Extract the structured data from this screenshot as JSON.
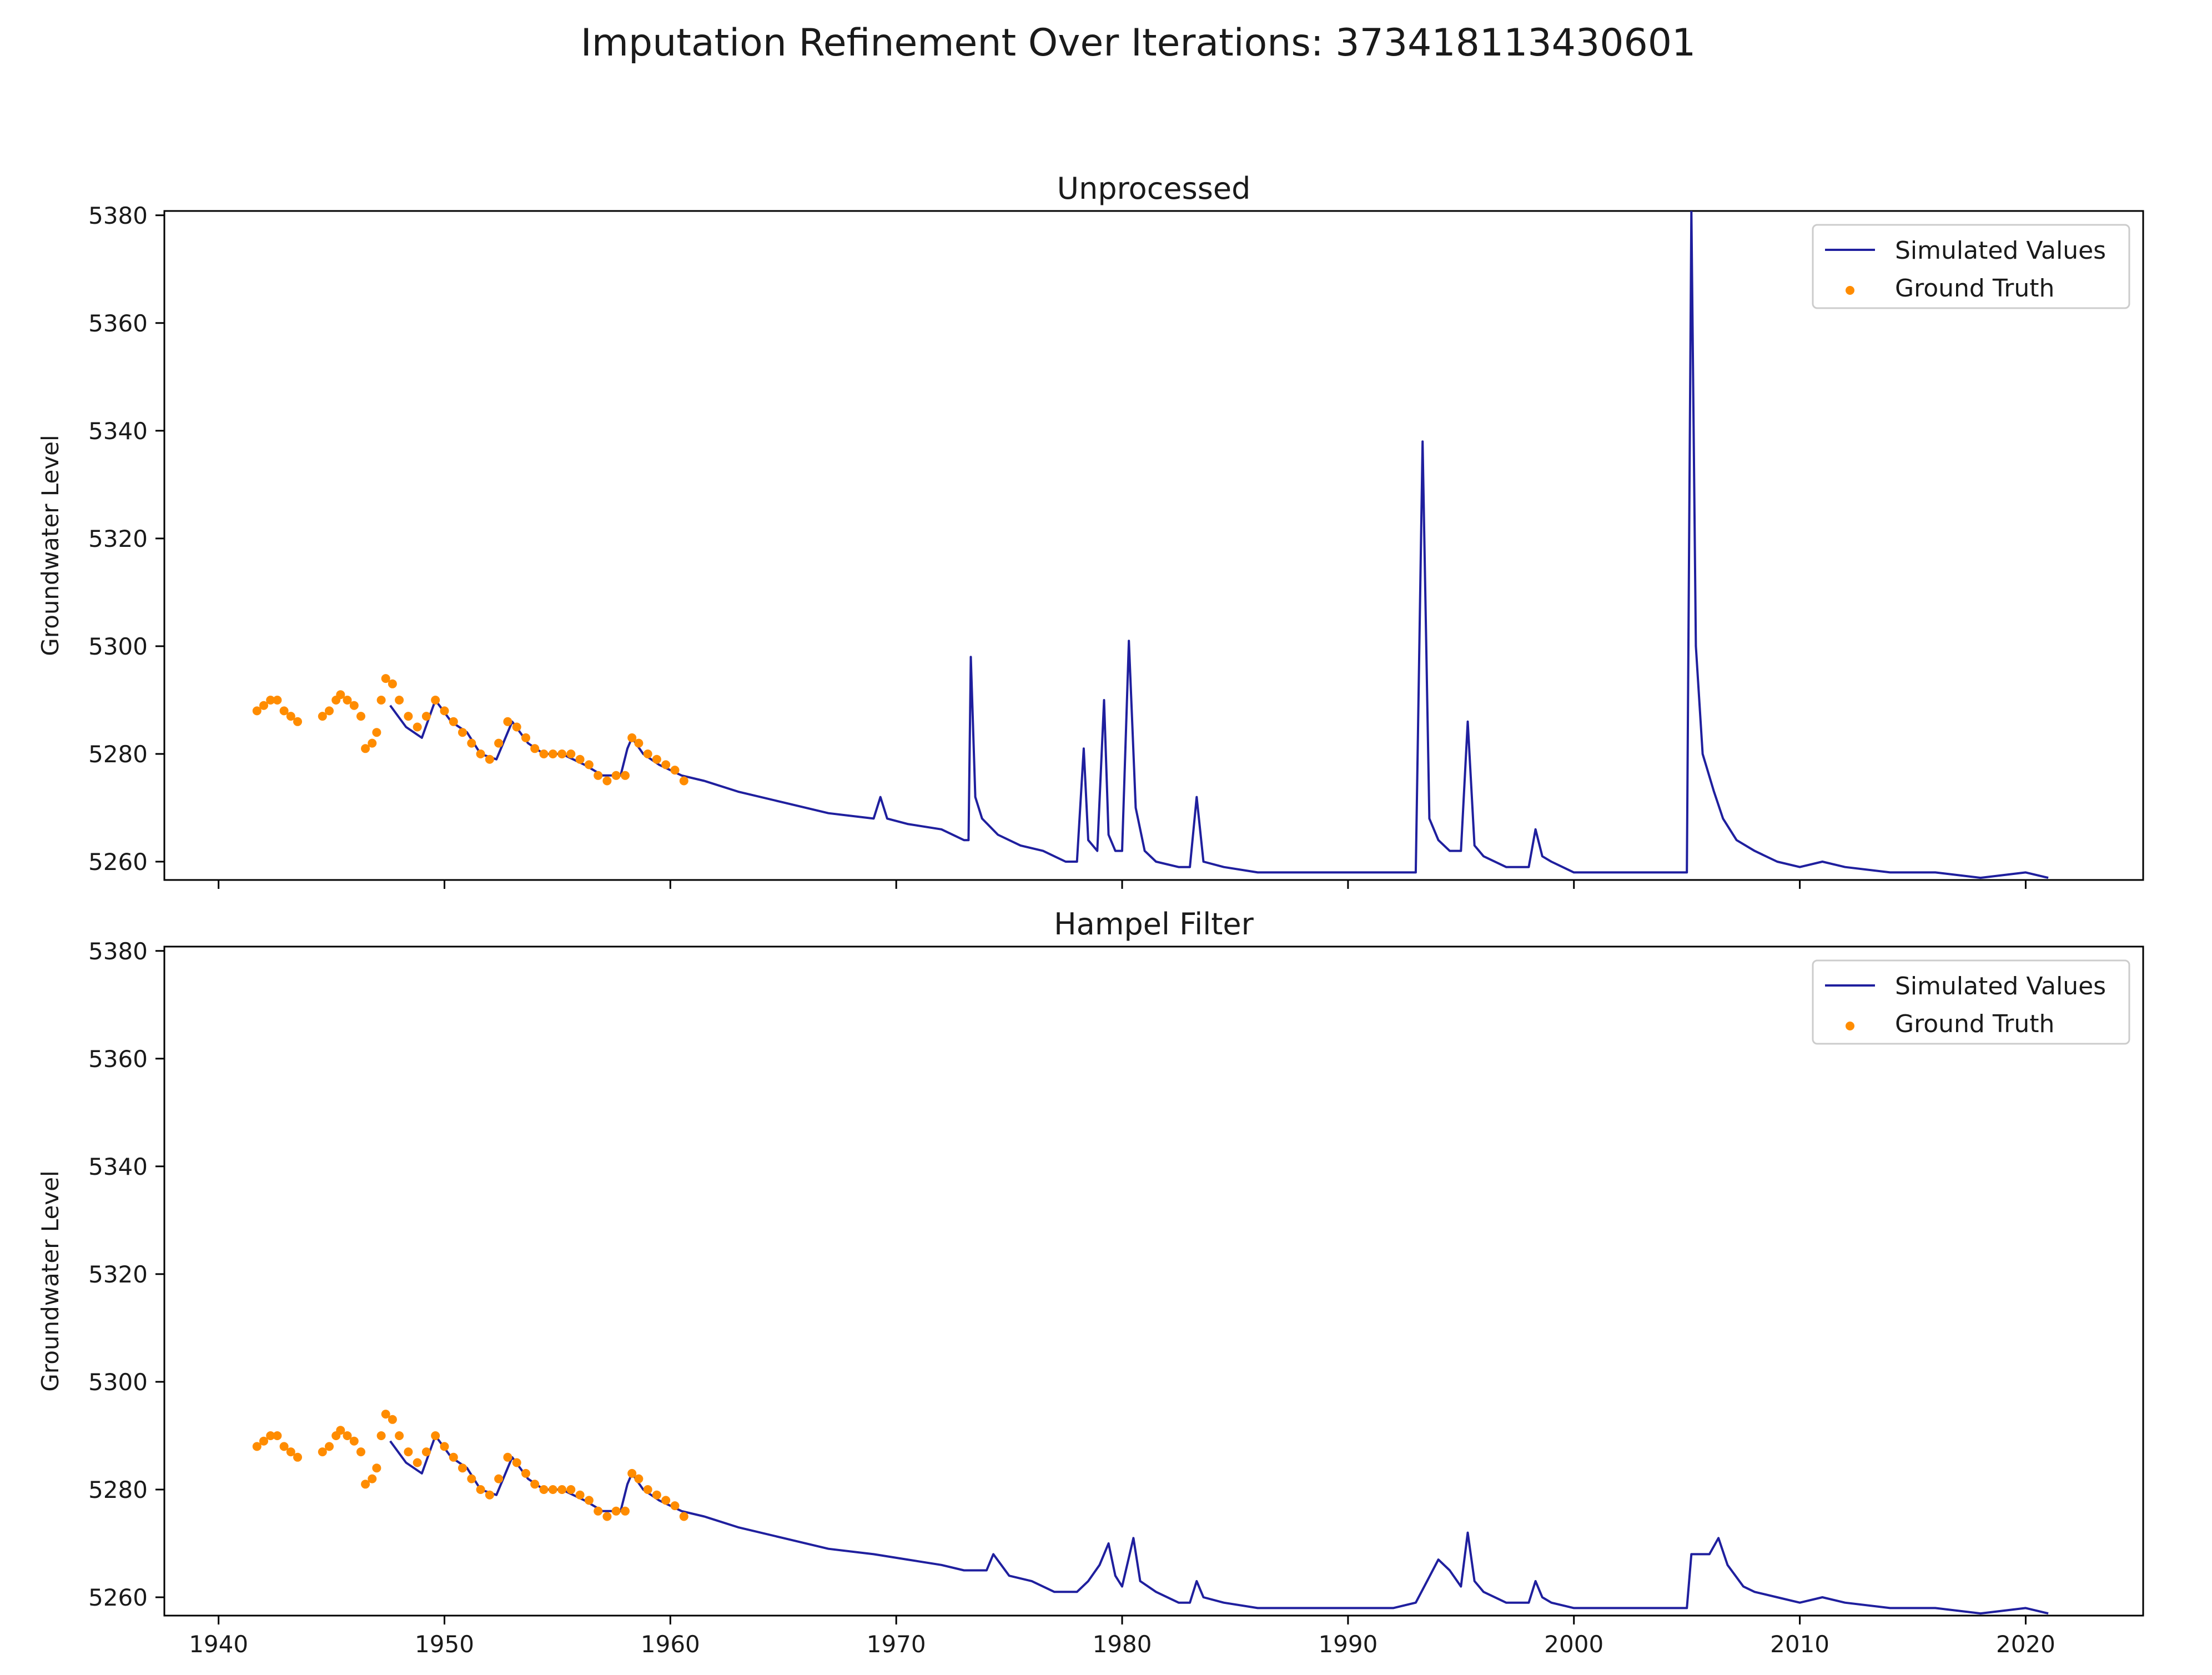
{
  "figure": {
    "suptitle": "Imputation Refinement Over Iterations: 373418113430601"
  },
  "style": {
    "line_color": "#1f1f9e",
    "truth_color": "#ff8c00",
    "axis_color": "#000000"
  },
  "chart_data": [
    {
      "type": "line",
      "title": "Unprocessed",
      "xlabel": "",
      "ylabel": "Groundwater Level",
      "xlim": [
        1937.6,
        2025.2
      ],
      "ylim": [
        5256.6,
        5380.8
      ],
      "xticks": [
        1940,
        1950,
        1960,
        1970,
        1980,
        1990,
        2000,
        2010,
        2020
      ],
      "xticklabels": [],
      "yticks": [
        5260,
        5280,
        5300,
        5320,
        5340,
        5360,
        5380
      ],
      "yticklabels": [
        "5260",
        "5280",
        "5300",
        "5320",
        "5340",
        "5360",
        "5380"
      ],
      "grid": false,
      "legend": {
        "position": "upper-right",
        "entries": [
          "Simulated Values",
          "Ground Truth"
        ]
      },
      "series": [
        {
          "name": "Simulated Values",
          "kind": "line",
          "x": [
            1947.6,
            1948.3,
            1949.0,
            1949.6,
            1950.3,
            1951.0,
            1951.6,
            1952.3,
            1953.0,
            1953.7,
            1954.4,
            1955.2,
            1956.2,
            1957.0,
            1957.8,
            1958.1,
            1958.3,
            1958.8,
            1959.5,
            1960.0,
            1960.5,
            1961.5,
            1963.0,
            1965.0,
            1967.0,
            1969.0,
            1969.3,
            1969.6,
            1970.5,
            1972.0,
            1973.0,
            1973.2,
            1973.3,
            1973.5,
            1973.8,
            1974.5,
            1975.5,
            1976.5,
            1977.5,
            1978.0,
            1978.3,
            1978.5,
            1978.9,
            1979.2,
            1979.4,
            1979.7,
            1980.0,
            1980.3,
            1980.6,
            1981.0,
            1981.5,
            1982.5,
            1983.0,
            1983.3,
            1983.6,
            1984.5,
            1986.0,
            1988.0,
            1990.0,
            1992.0,
            1993.0,
            1993.3,
            1993.6,
            1994.0,
            1994.5,
            1995.0,
            1995.3,
            1995.6,
            1996.0,
            1997.0,
            1998.0,
            1998.3,
            1998.6,
            1999.0,
            2000.0,
            2002.0,
            2004.0,
            2005.0,
            2005.2,
            2005.4,
            2005.7,
            2006.2,
            2006.6,
            2007.2,
            2008.0,
            2009.0,
            2010.0,
            2011.0,
            2012.0,
            2014.0,
            2016.0,
            2018.0,
            2020.0,
            2021.0
          ],
          "y": [
            5289,
            5285,
            5283,
            5290,
            5286,
            5284,
            5280,
            5279,
            5286,
            5282,
            5280,
            5280,
            5278,
            5276,
            5276,
            5281,
            5283,
            5280,
            5278,
            5277,
            5276,
            5275,
            5273,
            5271,
            5269,
            5268,
            5272,
            5268,
            5267,
            5266,
            5264,
            5264,
            5298,
            5272,
            5268,
            5265,
            5263,
            5262,
            5260,
            5260,
            5281,
            5264,
            5262,
            5290,
            5265,
            5262,
            5262,
            5301,
            5270,
            5262,
            5260,
            5259,
            5259,
            5272,
            5260,
            5259,
            5258,
            5258,
            5258,
            5258,
            5258,
            5338,
            5268,
            5264,
            5262,
            5262,
            5286,
            5263,
            5261,
            5259,
            5259,
            5266,
            5261,
            5260,
            5258,
            5258,
            5258,
            5258,
            5381,
            5300,
            5280,
            5273,
            5268,
            5264,
            5262,
            5260,
            5259,
            5260,
            5259,
            5258,
            5258,
            5257,
            5258,
            5257
          ]
        },
        {
          "name": "Ground Truth",
          "kind": "scatter",
          "x": [
            1941.7,
            1942.0,
            1942.3,
            1942.6,
            1942.9,
            1943.2,
            1943.5,
            1944.6,
            1944.9,
            1945.2,
            1945.4,
            1945.7,
            1946.0,
            1946.3,
            1946.5,
            1946.8,
            1947.0,
            1947.2,
            1947.4,
            1947.7,
            1948.0,
            1948.4,
            1948.8,
            1949.2,
            1949.6,
            1950.0,
            1950.4,
            1950.8,
            1951.2,
            1951.6,
            1952.0,
            1952.4,
            1952.8,
            1953.2,
            1953.6,
            1954.0,
            1954.4,
            1954.8,
            1955.2,
            1955.6,
            1956.0,
            1956.4,
            1956.8,
            1957.2,
            1957.6,
            1958.0,
            1958.3,
            1958.6,
            1959.0,
            1959.4,
            1959.8,
            1960.2,
            1960.6
          ],
          "y": [
            5288,
            5289,
            5290,
            5290,
            5288,
            5287,
            5286,
            5287,
            5288,
            5290,
            5291,
            5290,
            5289,
            5287,
            5281,
            5282,
            5284,
            5290,
            5294,
            5293,
            5290,
            5287,
            5285,
            5287,
            5290,
            5288,
            5286,
            5284,
            5282,
            5280,
            5279,
            5282,
            5286,
            5285,
            5283,
            5281,
            5280,
            5280,
            5280,
            5280,
            5279,
            5278,
            5276,
            5275,
            5276,
            5276,
            5283,
            5282,
            5280,
            5279,
            5278,
            5277,
            5275
          ]
        }
      ]
    },
    {
      "type": "line",
      "title": "Hampel Filter",
      "xlabel": "",
      "ylabel": "Groundwater Level",
      "xlim": [
        1937.6,
        2025.2
      ],
      "ylim": [
        5256.6,
        5380.8
      ],
      "xticks": [
        1940,
        1950,
        1960,
        1970,
        1980,
        1990,
        2000,
        2010,
        2020
      ],
      "xticklabels": [
        "1940",
        "1950",
        "1960",
        "1970",
        "1980",
        "1990",
        "2000",
        "2010",
        "2020"
      ],
      "yticks": [
        5260,
        5280,
        5300,
        5320,
        5340,
        5360,
        5380
      ],
      "yticklabels": [
        "5260",
        "5280",
        "5300",
        "5320",
        "5340",
        "5360",
        "5380"
      ],
      "grid": false,
      "legend": {
        "position": "upper-right",
        "entries": [
          "Simulated Values",
          "Ground Truth"
        ]
      },
      "series": [
        {
          "name": "Simulated Values",
          "kind": "line",
          "x": [
            1947.6,
            1948.3,
            1949.0,
            1949.6,
            1950.3,
            1951.0,
            1951.6,
            1952.3,
            1953.0,
            1953.7,
            1954.4,
            1955.2,
            1956.2,
            1957.0,
            1957.8,
            1958.1,
            1958.3,
            1958.8,
            1959.5,
            1960.0,
            1960.5,
            1961.5,
            1963.0,
            1965.0,
            1967.0,
            1969.0,
            1970.5,
            1972.0,
            1973.0,
            1974.0,
            1974.3,
            1975.0,
            1976.0,
            1977.0,
            1978.0,
            1978.5,
            1979.0,
            1979.4,
            1979.7,
            1980.0,
            1980.5,
            1980.8,
            1981.5,
            1982.5,
            1983.0,
            1983.3,
            1983.6,
            1984.5,
            1986.0,
            1988.0,
            1990.0,
            1992.0,
            1993.0,
            1993.5,
            1994.0,
            1994.5,
            1995.0,
            1995.3,
            1995.6,
            1996.0,
            1997.0,
            1998.0,
            1998.3,
            1998.6,
            1999.0,
            2000.0,
            2002.0,
            2004.0,
            2005.0,
            2005.2,
            2006.0,
            2006.4,
            2006.8,
            2007.5,
            2008.0,
            2009.0,
            2010.0,
            2011.0,
            2012.0,
            2014.0,
            2016.0,
            2018.0,
            2020.0,
            2021.0
          ],
          "y": [
            5289,
            5285,
            5283,
            5290,
            5286,
            5284,
            5280,
            5279,
            5286,
            5282,
            5280,
            5280,
            5278,
            5276,
            5276,
            5281,
            5283,
            5280,
            5278,
            5277,
            5276,
            5275,
            5273,
            5271,
            5269,
            5268,
            5267,
            5266,
            5265,
            5265,
            5268,
            5264,
            5263,
            5261,
            5261,
            5263,
            5266,
            5270,
            5264,
            5262,
            5271,
            5263,
            5261,
            5259,
            5259,
            5263,
            5260,
            5259,
            5258,
            5258,
            5258,
            5258,
            5259,
            5263,
            5267,
            5265,
            5262,
            5272,
            5263,
            5261,
            5259,
            5259,
            5263,
            5260,
            5259,
            5258,
            5258,
            5258,
            5258,
            5268,
            5268,
            5271,
            5266,
            5262,
            5261,
            5260,
            5259,
            5260,
            5259,
            5258,
            5258,
            5257,
            5258,
            5257
          ]
        },
        {
          "name": "Ground Truth",
          "kind": "scatter",
          "x": [
            1941.7,
            1942.0,
            1942.3,
            1942.6,
            1942.9,
            1943.2,
            1943.5,
            1944.6,
            1944.9,
            1945.2,
            1945.4,
            1945.7,
            1946.0,
            1946.3,
            1946.5,
            1946.8,
            1947.0,
            1947.2,
            1947.4,
            1947.7,
            1948.0,
            1948.4,
            1948.8,
            1949.2,
            1949.6,
            1950.0,
            1950.4,
            1950.8,
            1951.2,
            1951.6,
            1952.0,
            1952.4,
            1952.8,
            1953.2,
            1953.6,
            1954.0,
            1954.4,
            1954.8,
            1955.2,
            1955.6,
            1956.0,
            1956.4,
            1956.8,
            1957.2,
            1957.6,
            1958.0,
            1958.3,
            1958.6,
            1959.0,
            1959.4,
            1959.8,
            1960.2,
            1960.6
          ],
          "y": [
            5288,
            5289,
            5290,
            5290,
            5288,
            5287,
            5286,
            5287,
            5288,
            5290,
            5291,
            5290,
            5289,
            5287,
            5281,
            5282,
            5284,
            5290,
            5294,
            5293,
            5290,
            5287,
            5285,
            5287,
            5290,
            5288,
            5286,
            5284,
            5282,
            5280,
            5279,
            5282,
            5286,
            5285,
            5283,
            5281,
            5280,
            5280,
            5280,
            5280,
            5279,
            5278,
            5276,
            5275,
            5276,
            5276,
            5283,
            5282,
            5280,
            5279,
            5278,
            5277,
            5275
          ]
        }
      ]
    }
  ]
}
